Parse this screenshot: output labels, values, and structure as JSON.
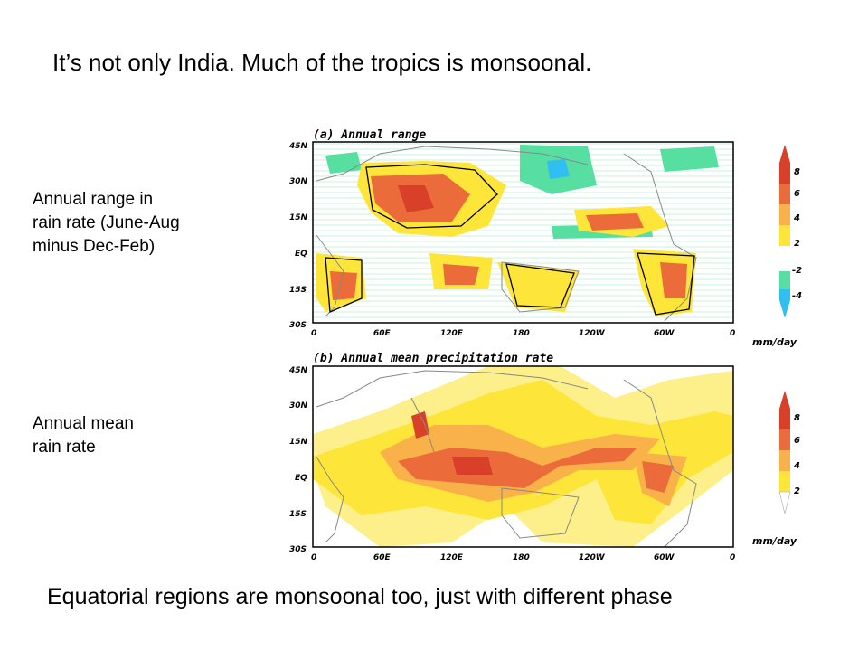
{
  "slide": {
    "title": "It’s not only India.  Much of the tropics is monsoonal.",
    "label_range": "Annual range in\nrain rate (June-Aug\nminus Dec-Feb)",
    "label_mean": "Annual mean\nrain rate",
    "footer": "Equatorial regions are monsoonal too, just with different phase"
  },
  "panels": [
    {
      "title": "(a) Annual range",
      "lat_labels": [
        "45N",
        "30N",
        "15N",
        "EQ",
        "15S",
        "30S"
      ],
      "lon_labels": [
        "0",
        "60E",
        "120E",
        "180",
        "120W",
        "60W",
        "0"
      ],
      "colorbar": {
        "labels": [
          "8",
          "6",
          "4",
          "2",
          "-2",
          "-4"
        ],
        "unit": "mm/day"
      }
    },
    {
      "title": "(b) Annual mean precipitation rate",
      "lat_labels": [
        "45N",
        "30N",
        "15N",
        "EQ",
        "15S",
        "30S"
      ],
      "lon_labels": [
        "0",
        "60E",
        "120E",
        "180",
        "120W",
        "60W",
        "0"
      ],
      "colorbar": {
        "labels": [
          "8",
          "6",
          "4",
          "2"
        ],
        "unit": "mm/day"
      }
    }
  ],
  "colors": {
    "level_2": "#fde53a",
    "level_4": "#f9b24a",
    "level_6": "#ec6b3a",
    "level_8": "#d8402a",
    "neg_2": "#56dfa0",
    "neg_4": "#30bff0",
    "light": "#fdf08a"
  }
}
